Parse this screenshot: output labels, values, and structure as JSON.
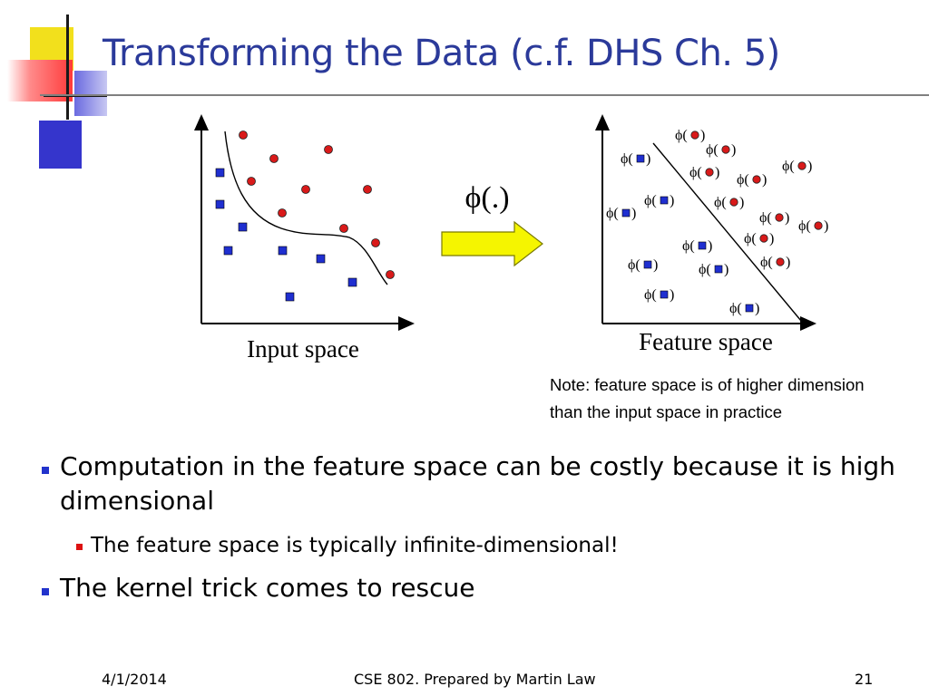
{
  "title": "Transforming the Data (c.f. DHS Ch. 5)",
  "diagram": {
    "input_label": "Input space",
    "feature_label": "Feature space",
    "mapping_label": "ϕ(.)",
    "phi_symbol": "ϕ(",
    "close_paren": ")"
  },
  "note": {
    "line1": "Note: feature space is of higher dimension",
    "line2": "than the input space in practice"
  },
  "bullets": [
    "Computation in the feature space can be costly because it is high dimensional",
    "The feature space is typically infinite-dimensional!",
    "The kernel trick comes to rescue"
  ],
  "footer": {
    "date": "4/1/2014",
    "center": "CSE 802. Prepared by Martin Law",
    "page": "21"
  },
  "colors": {
    "title": "#2b3a9a",
    "square_marker": "#1f2fd0",
    "circle_marker": "#d91a1a",
    "bullet_level1": "#2233cc",
    "bullet_level2": "#dd1111",
    "arrow_fill": "#f5f500"
  }
}
